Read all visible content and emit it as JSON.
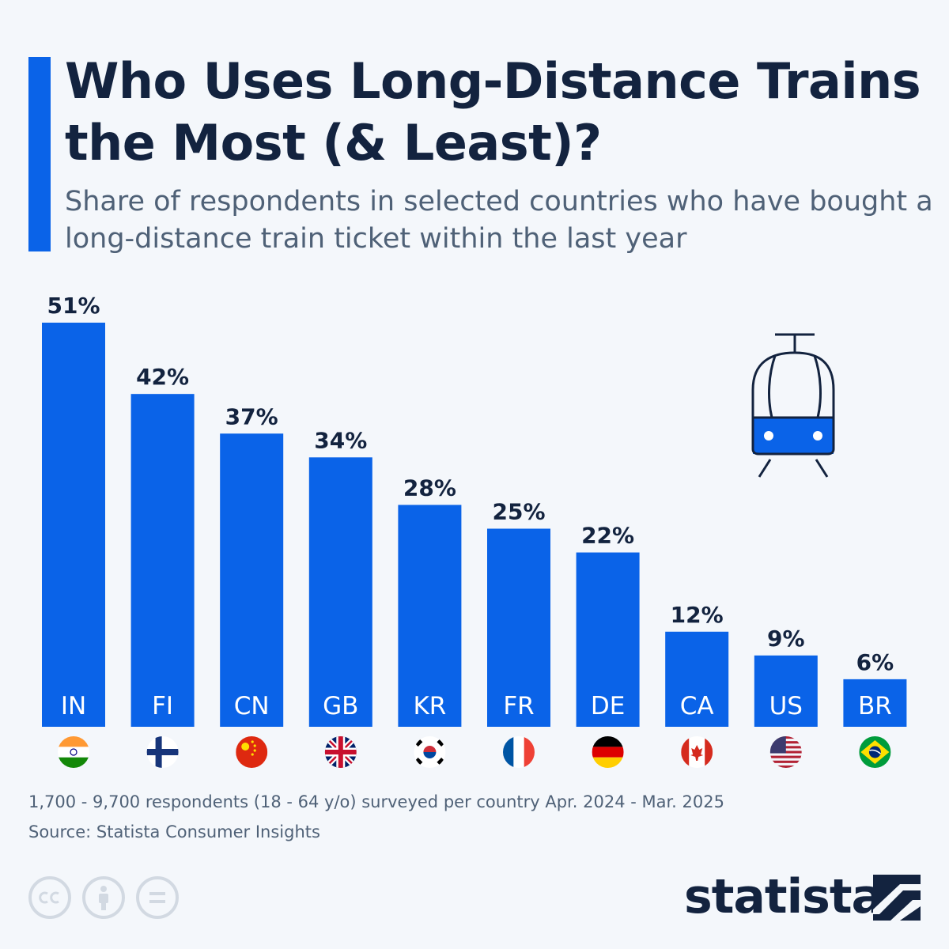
{
  "header": {
    "title": "Who Uses Long-Distance Trains the Most (& Least)?",
    "subtitle": "Share of respondents in selected countries who have bought a long-distance train ticket within the last year"
  },
  "chart_data": {
    "type": "bar",
    "title": "Who Uses Long-Distance Trains the Most (& Least)?",
    "subtitle": "Share of respondents in selected countries who have bought a long-distance train ticket within the last year",
    "categories": [
      "IN",
      "FI",
      "CN",
      "GB",
      "KR",
      "FR",
      "DE",
      "CA",
      "US",
      "BR"
    ],
    "values": [
      51,
      42,
      37,
      34,
      28,
      25,
      22,
      12,
      9,
      6
    ],
    "value_labels": [
      "51%",
      "42%",
      "37%",
      "34%",
      "28%",
      "25%",
      "22%",
      "12%",
      "9%",
      "6%"
    ],
    "unit": "%",
    "xlabel": "",
    "ylabel": "",
    "ylim": [
      0,
      51
    ],
    "grid": false,
    "bar_color": "#0a63e8"
  },
  "footer": {
    "note": "1,700 - 9,700 respondents (18 - 64 y/o) surveyed per country Apr. 2024 - Mar. 2025",
    "source": "Source: Statista Consumer Insights"
  },
  "license_icons": [
    "cc-icon",
    "attribution-icon",
    "no-derivatives-icon"
  ],
  "brand": {
    "name": "statista"
  },
  "colors": {
    "accent": "#0a63e8",
    "title": "#13233f",
    "subtitle": "#4f6177",
    "background": "#f4f7fb"
  }
}
